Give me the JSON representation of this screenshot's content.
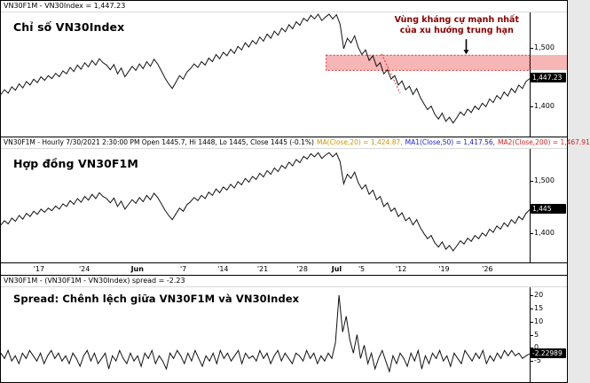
{
  "panels": {
    "index": {
      "header": "VN30F1M - VN30Index = 1,447.23",
      "title": "Chỉ số VN30Index",
      "annotation_line1": "Vùng kháng cự mạnh nhất",
      "annotation_line2": "của xu hướng trung hạn"
    },
    "futures": {
      "header_base": "VN30F1M - Hourly 7/30/2021 2:30:00 PM Open 1445.7, Hi 1448, Lo 1445, Close 1445 (-0.1%)",
      "ma20_text": "MA(Close,20) = 1,424.87,",
      "ma1_text": "MA1(Close,50) = 1,417.56,",
      "ma2_text": "MA2(Close,200) = 1,467.91",
      "title": "Hợp đồng VN30F1M"
    },
    "spread": {
      "header": "VN30F1M - (VN30F1M - VN30Index) spread = -2.23",
      "title": "Spread: Chênh lệch giữa VN30F1M và VN30Index"
    }
  },
  "colors": {
    "line": "#111111",
    "ma20": "#c99700",
    "ma1": "#1a1acc",
    "ma2": "#d42020",
    "annotation": "#8b0000",
    "zone_fill": "#f6b6b6",
    "zone_border": "#e03030",
    "tag_bg": "#000000",
    "tag_text": "#ffffff"
  },
  "chart_data": [
    {
      "type": "line",
      "name": "VN30Index hourly close",
      "title": "Chỉ số VN30Index",
      "ylim": [
        1348,
        1560
      ],
      "ticks": [
        {
          "v": 1500,
          "label": "1,500"
        },
        {
          "v": 1400,
          "label": "1,400"
        }
      ],
      "tag": {
        "v": 1447.23,
        "label": "1,447.23"
      },
      "zone": {
        "x0": 0.615,
        "top": 1487,
        "bottom": 1461,
        "arrow_x": 0.88
      },
      "trendline": {
        "x1": 0.72,
        "v1": 1489,
        "x2": 0.755,
        "v2": 1422
      },
      "values": [
        1420,
        1428,
        1422,
        1433,
        1427,
        1438,
        1431,
        1442,
        1436,
        1446,
        1440,
        1450,
        1444,
        1452,
        1447,
        1456,
        1450,
        1460,
        1455,
        1466,
        1459,
        1470,
        1463,
        1474,
        1467,
        1478,
        1470,
        1481,
        1474,
        1470,
        1462,
        1471,
        1455,
        1465,
        1450,
        1459,
        1468,
        1461,
        1472,
        1464,
        1476,
        1468,
        1480,
        1472,
        1460,
        1448,
        1438,
        1430,
        1441,
        1452,
        1446,
        1458,
        1464,
        1472,
        1466,
        1476,
        1470,
        1482,
        1476,
        1488,
        1481,
        1492,
        1486,
        1497,
        1490,
        1502,
        1496,
        1508,
        1501,
        1512,
        1506,
        1518,
        1511,
        1523,
        1516,
        1528,
        1521,
        1533,
        1527,
        1539,
        1532,
        1544,
        1538,
        1550,
        1545,
        1555,
        1549,
        1557,
        1546,
        1552,
        1557,
        1549,
        1556,
        1540,
        1498,
        1516,
        1508,
        1520,
        1500,
        1488,
        1496,
        1478,
        1486,
        1468,
        1474,
        1455,
        1462,
        1446,
        1452,
        1436,
        1443,
        1428,
        1434,
        1420,
        1430,
        1415,
        1404,
        1394,
        1400,
        1386,
        1378,
        1388,
        1374,
        1381,
        1371,
        1380,
        1390,
        1384,
        1395,
        1389,
        1400,
        1394,
        1405,
        1399,
        1412,
        1406,
        1418,
        1412,
        1424,
        1417,
        1430,
        1423,
        1436,
        1430,
        1442,
        1447
      ]
    },
    {
      "type": "line",
      "name": "VN30F1M hourly close",
      "title": "Hợp đồng VN30F1M",
      "ylim": [
        1345,
        1560
      ],
      "ticks": [
        {
          "v": 1500,
          "label": "1,500"
        },
        {
          "v": 1400,
          "label": "1,400"
        }
      ],
      "tag": {
        "v": 1445,
        "label": "1,445"
      },
      "x_ticks": [
        {
          "label": "'17",
          "x": 0.072
        },
        {
          "label": "'24",
          "x": 0.158
        },
        {
          "label": "Jun",
          "x": 0.258,
          "bold": true
        },
        {
          "label": "'7",
          "x": 0.345
        },
        {
          "label": "'14",
          "x": 0.42
        },
        {
          "label": "'21",
          "x": 0.495
        },
        {
          "label": "'28",
          "x": 0.57
        },
        {
          "label": "Jul",
          "x": 0.635,
          "bold": true
        },
        {
          "label": "'5",
          "x": 0.682
        },
        {
          "label": "'12",
          "x": 0.757
        },
        {
          "label": "'19",
          "x": 0.838
        },
        {
          "label": "'26",
          "x": 0.92
        }
      ],
      "values": [
        1416,
        1424,
        1418,
        1429,
        1423,
        1434,
        1427,
        1438,
        1432,
        1442,
        1436,
        1446,
        1440,
        1448,
        1443,
        1452,
        1446,
        1456,
        1451,
        1462,
        1455,
        1466,
        1459,
        1470,
        1463,
        1474,
        1466,
        1477,
        1470,
        1466,
        1458,
        1467,
        1451,
        1461,
        1446,
        1455,
        1464,
        1457,
        1468,
        1460,
        1472,
        1464,
        1476,
        1468,
        1456,
        1444,
        1434,
        1426,
        1437,
        1448,
        1442,
        1454,
        1460,
        1468,
        1462,
        1472,
        1466,
        1478,
        1472,
        1484,
        1477,
        1488,
        1482,
        1493,
        1486,
        1498,
        1492,
        1504,
        1497,
        1508,
        1502,
        1514,
        1507,
        1519,
        1512,
        1524,
        1517,
        1529,
        1523,
        1535,
        1528,
        1540,
        1534,
        1546,
        1541,
        1551,
        1545,
        1553,
        1542,
        1548,
        1553,
        1545,
        1552,
        1536,
        1494,
        1512,
        1504,
        1516,
        1496,
        1484,
        1492,
        1474,
        1482,
        1464,
        1470,
        1451,
        1458,
        1442,
        1448,
        1432,
        1439,
        1424,
        1430,
        1416,
        1426,
        1411,
        1400,
        1390,
        1396,
        1382,
        1374,
        1384,
        1370,
        1377,
        1367,
        1376,
        1386,
        1380,
        1391,
        1385,
        1396,
        1390,
        1401,
        1395,
        1408,
        1402,
        1414,
        1408,
        1420,
        1413,
        1426,
        1419,
        1432,
        1426,
        1438,
        1445
      ]
    },
    {
      "type": "line",
      "name": "Spread VN30F1M - VN30Index",
      "title": "Spread: Chênh lệch giữa VN30F1M và VN30Index",
      "ylim": [
        -13,
        23
      ],
      "ticks": [
        {
          "v": 20,
          "label": "20"
        },
        {
          "v": 15,
          "label": "15"
        },
        {
          "v": 10,
          "label": "10"
        },
        {
          "v": 5,
          "label": "5"
        },
        {
          "v": 0,
          "label": "0"
        },
        {
          "v": -5,
          "label": "-5"
        }
      ],
      "tag": {
        "v": -2.23,
        "label": "-2.22989"
      },
      "values": [
        -2,
        -4,
        -1,
        -5,
        -3,
        -6,
        -2,
        -4,
        -1,
        -3,
        -5,
        -2,
        -6,
        -3,
        -1,
        -4,
        -2,
        -5,
        -3,
        -6,
        -2,
        -4,
        -7,
        -3,
        -1,
        -5,
        -2,
        -6,
        -4,
        -2,
        -8,
        -3,
        -5,
        -1,
        -4,
        -6,
        -2,
        -5,
        -3,
        -7,
        -2,
        -4,
        -1,
        -6,
        -3,
        -5,
        -8,
        -2,
        -4,
        -1,
        -3,
        -6,
        -2,
        -5,
        -1,
        -4,
        -7,
        -3,
        -5,
        -2,
        -6,
        -1,
        -4,
        -2,
        -5,
        -3,
        -1,
        -6,
        -2,
        -4,
        -3,
        -5,
        -1,
        -4,
        -2,
        -6,
        -3,
        -1,
        -5,
        -2,
        -4,
        -6,
        -2,
        -3,
        -5,
        -1,
        -4,
        -2,
        -6,
        -3,
        -5,
        -2,
        -4,
        2,
        20,
        6,
        12,
        3,
        -2,
        5,
        -4,
        1,
        -6,
        -2,
        -8,
        -4,
        -1,
        -5,
        -9,
        -3,
        -6,
        -2,
        -4,
        -7,
        -2,
        -5,
        -1,
        -8,
        -3,
        -6,
        -2,
        -4,
        -1,
        -5,
        -3,
        -7,
        -2,
        -4,
        -6,
        -1,
        -3,
        -5,
        -2,
        -4,
        -1,
        -6,
        -3,
        -5,
        -2,
        -4,
        -1,
        -3,
        -1,
        -3,
        -2,
        -4,
        -3,
        -2.23
      ]
    }
  ]
}
